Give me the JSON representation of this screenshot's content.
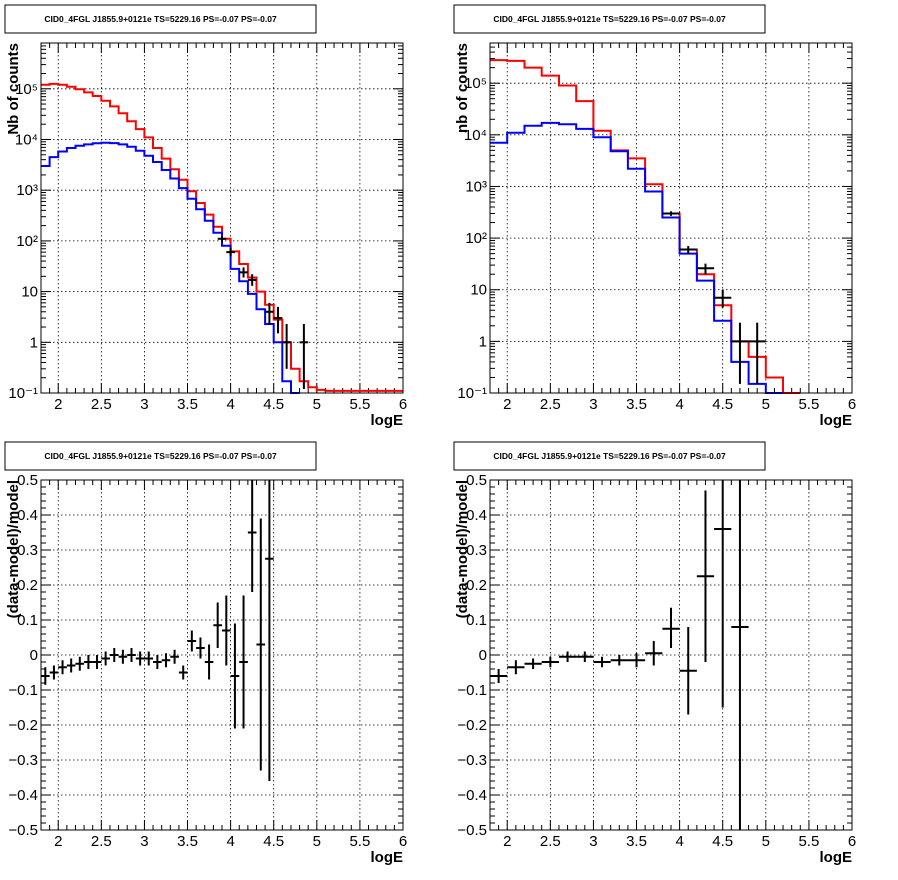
{
  "chart_data": [
    {
      "type": "line",
      "title": "CID0_4FGL J1855.9+0121e TS=5229.16 PS=-0.07 PS=-0.07",
      "xlabel": "logE",
      "ylabel": "Nb of counts",
      "log_y": true,
      "xlim": [
        1.8,
        6
      ],
      "ylim": [
        0.1,
        800000
      ],
      "x_ticks": [
        "2",
        "2.5",
        "3",
        "3.5",
        "4",
        "4.5",
        "5",
        "5.5",
        "6"
      ],
      "y_ticks": [
        "10⁻¹",
        "1",
        "10",
        "10²",
        "10³",
        "10⁴",
        "10⁵"
      ],
      "grid": true,
      "series": [
        {
          "color": "#ff0000",
          "bin_width": 0.1,
          "bins": [
            {
              "x0": 1.8,
              "y": 120000
            },
            {
              "x0": 1.9,
              "y": 125000
            },
            {
              "x0": 2.0,
              "y": 120000
            },
            {
              "x0": 2.1,
              "y": 110000
            },
            {
              "x0": 2.2,
              "y": 98000
            },
            {
              "x0": 2.3,
              "y": 85000
            },
            {
              "x0": 2.4,
              "y": 72000
            },
            {
              "x0": 2.5,
              "y": 58000
            },
            {
              "x0": 2.6,
              "y": 45000
            },
            {
              "x0": 2.7,
              "y": 33000
            },
            {
              "x0": 2.8,
              "y": 23000
            },
            {
              "x0": 2.9,
              "y": 16000
            },
            {
              "x0": 3.0,
              "y": 11000
            },
            {
              "x0": 3.1,
              "y": 6800
            },
            {
              "x0": 3.2,
              "y": 4200
            },
            {
              "x0": 3.3,
              "y": 2600
            },
            {
              "x0": 3.4,
              "y": 1600
            },
            {
              "x0": 3.5,
              "y": 950
            },
            {
              "x0": 3.6,
              "y": 560
            },
            {
              "x0": 3.7,
              "y": 330
            },
            {
              "x0": 3.8,
              "y": 190
            },
            {
              "x0": 3.9,
              "y": 110
            },
            {
              "x0": 4.0,
              "y": 62
            },
            {
              "x0": 4.1,
              "y": 35
            },
            {
              "x0": 4.2,
              "y": 19
            },
            {
              "x0": 4.3,
              "y": 10
            },
            {
              "x0": 4.4,
              "y": 5.5
            },
            {
              "x0": 4.5,
              "y": 2.8
            },
            {
              "x0": 4.6,
              "y": 1.0
            },
            {
              "x0": 4.7,
              "y": 0.3
            },
            {
              "x0": 4.8,
              "y": 0.17
            },
            {
              "x0": 4.9,
              "y": 0.13
            },
            {
              "x0": 5.0,
              "y": 0.115
            },
            {
              "x0": 5.1,
              "y": 0.11
            },
            {
              "x0": 5.2,
              "y": 0.11
            },
            {
              "x0": 5.3,
              "y": 0.11
            },
            {
              "x0": 5.4,
              "y": 0.11
            },
            {
              "x0": 5.5,
              "y": 0.11
            },
            {
              "x0": 5.6,
              "y": 0.11
            },
            {
              "x0": 5.7,
              "y": 0.11
            },
            {
              "x0": 5.8,
              "y": 0.11
            },
            {
              "x0": 5.9,
              "y": 0.11
            }
          ]
        },
        {
          "color": "#0000ff",
          "bin_width": 0.1,
          "bins": [
            {
              "x0": 1.8,
              "y": 3000
            },
            {
              "x0": 1.9,
              "y": 4500
            },
            {
              "x0": 2.0,
              "y": 5800
            },
            {
              "x0": 2.1,
              "y": 6800
            },
            {
              "x0": 2.2,
              "y": 7500
            },
            {
              "x0": 2.3,
              "y": 8000
            },
            {
              "x0": 2.4,
              "y": 8400
            },
            {
              "x0": 2.5,
              "y": 8600
            },
            {
              "x0": 2.6,
              "y": 8500
            },
            {
              "x0": 2.7,
              "y": 8000
            },
            {
              "x0": 2.8,
              "y": 7200
            },
            {
              "x0": 2.9,
              "y": 6000
            },
            {
              "x0": 3.0,
              "y": 4800
            },
            {
              "x0": 3.1,
              "y": 3600
            },
            {
              "x0": 3.2,
              "y": 2500
            },
            {
              "x0": 3.3,
              "y": 1700
            },
            {
              "x0": 3.4,
              "y": 1100
            },
            {
              "x0": 3.5,
              "y": 680
            },
            {
              "x0": 3.6,
              "y": 420
            },
            {
              "x0": 3.7,
              "y": 250
            },
            {
              "x0": 3.8,
              "y": 145
            },
            {
              "x0": 3.9,
              "y": 80
            },
            {
              "x0": 4.0,
              "y": 28
            },
            {
              "x0": 4.1,
              "y": 16
            },
            {
              "x0": 4.2,
              "y": 9
            },
            {
              "x0": 4.3,
              "y": 4.5
            },
            {
              "x0": 4.4,
              "y": 2.3
            },
            {
              "x0": 4.5,
              "y": 1.0
            },
            {
              "x0": 4.6,
              "y": 0.17
            },
            {
              "x0": 4.7,
              "y": 0.1
            }
          ]
        }
      ],
      "points": [
        {
          "x": 3.9,
          "xerr": 0.05,
          "y": 110,
          "ylo": 95,
          "yhi": 125
        },
        {
          "x": 4.0,
          "xerr": 0.05,
          "y": 60,
          "ylo": 50,
          "yhi": 72
        },
        {
          "x": 4.15,
          "xerr": 0.05,
          "y": 24,
          "ylo": 19,
          "yhi": 30
        },
        {
          "x": 4.25,
          "xerr": 0.05,
          "y": 17,
          "ylo": 13,
          "yhi": 22
        },
        {
          "x": 4.45,
          "xerr": 0.05,
          "y": 4,
          "ylo": 2.2,
          "yhi": 6
        },
        {
          "x": 4.55,
          "xerr": 0.05,
          "y": 3,
          "ylo": 1.5,
          "yhi": 5
        },
        {
          "x": 4.65,
          "xerr": 0.05,
          "y": 1,
          "ylo": 0.3,
          "yhi": 2.3
        },
        {
          "x": 4.85,
          "xerr": 0.05,
          "y": 1,
          "ylo": 0.12,
          "yhi": 2.3
        }
      ]
    },
    {
      "type": "line",
      "title": "CID0_4FGL J1855.9+0121e TS=5229.16 PS=-0.07 PS=-0.07",
      "xlabel": "logE",
      "ylabel": "nb of counts",
      "log_y": true,
      "xlim": [
        1.8,
        6
      ],
      "ylim": [
        0.1,
        600000
      ],
      "x_ticks": [
        "2",
        "2.5",
        "3",
        "3.5",
        "4",
        "4.5",
        "5",
        "5.5",
        "6"
      ],
      "y_ticks": [
        "10⁻¹",
        "1",
        "10",
        "10²",
        "10³",
        "10⁴",
        "10⁵"
      ],
      "grid": true,
      "series": [
        {
          "color": "#ff0000",
          "bin_width": 0.2,
          "bins": [
            {
              "x0": 1.8,
              "y": 280000
            },
            {
              "x0": 2.0,
              "y": 270000
            },
            {
              "x0": 2.2,
              "y": 200000
            },
            {
              "x0": 2.4,
              "y": 140000
            },
            {
              "x0": 2.6,
              "y": 90000
            },
            {
              "x0": 2.8,
              "y": 45000
            },
            {
              "x0": 3.0,
              "y": 12000
            },
            {
              "x0": 3.2,
              "y": 5000
            },
            {
              "x0": 3.4,
              "y": 3500
            },
            {
              "x0": 3.6,
              "y": 1100
            },
            {
              "x0": 3.8,
              "y": 300
            },
            {
              "x0": 4.0,
              "y": 60
            },
            {
              "x0": 4.2,
              "y": 20
            },
            {
              "x0": 4.4,
              "y": 5
            },
            {
              "x0": 4.6,
              "y": 1.0
            },
            {
              "x0": 4.8,
              "y": 0.5
            },
            {
              "x0": 5.0,
              "y": 0.2
            },
            {
              "x0": 5.2,
              "y": 0.1
            }
          ]
        },
        {
          "color": "#0000ff",
          "bin_width": 0.2,
          "bins": [
            {
              "x0": 1.8,
              "y": 7000
            },
            {
              "x0": 2.0,
              "y": 11000
            },
            {
              "x0": 2.2,
              "y": 15000
            },
            {
              "x0": 2.4,
              "y": 17000
            },
            {
              "x0": 2.6,
              "y": 16000
            },
            {
              "x0": 2.8,
              "y": 13000
            },
            {
              "x0": 3.0,
              "y": 9000
            },
            {
              "x0": 3.2,
              "y": 4800
            },
            {
              "x0": 3.4,
              "y": 2200
            },
            {
              "x0": 3.6,
              "y": 800
            },
            {
              "x0": 3.8,
              "y": 250
            },
            {
              "x0": 4.0,
              "y": 50
            },
            {
              "x0": 4.2,
              "y": 15
            },
            {
              "x0": 4.4,
              "y": 2.5
            },
            {
              "x0": 4.6,
              "y": 0.4
            },
            {
              "x0": 4.8,
              "y": 0.15
            },
            {
              "x0": 5.0,
              "y": 0.1
            }
          ]
        }
      ],
      "points": [
        {
          "x": 3.9,
          "xerr": 0.1,
          "y": 300,
          "ylo": 270,
          "yhi": 330
        },
        {
          "x": 4.1,
          "xerr": 0.1,
          "y": 60,
          "ylo": 50,
          "yhi": 70
        },
        {
          "x": 4.3,
          "xerr": 0.1,
          "y": 26,
          "ylo": 20,
          "yhi": 32
        },
        {
          "x": 4.5,
          "xerr": 0.1,
          "y": 7,
          "ylo": 4.5,
          "yhi": 10
        },
        {
          "x": 4.7,
          "xerr": 0.1,
          "y": 1,
          "ylo": 0.15,
          "yhi": 2.3
        },
        {
          "x": 4.9,
          "xerr": 0.1,
          "y": 1,
          "ylo": 0.15,
          "yhi": 2.3
        }
      ]
    },
    {
      "type": "scatter",
      "title": "CID0_4FGL J1855.9+0121e TS=5229.16 PS=-0.07 PS=-0.07",
      "xlabel": "logE",
      "ylabel": "(data-model)/model",
      "xlim": [
        1.8,
        6
      ],
      "ylim": [
        -0.5,
        0.5
      ],
      "x_ticks": [
        "2",
        "2.5",
        "3",
        "3.5",
        "4",
        "4.5",
        "5",
        "5.5",
        "6"
      ],
      "y_ticks": [
        "−0.5",
        "−0.4",
        "−0.3",
        "−0.2",
        "−0.1",
        "0",
        "0.1",
        "0.2",
        "0.3",
        "0.4",
        "0.5"
      ],
      "grid": true,
      "points": [
        {
          "x": 1.85,
          "xerr": 0.05,
          "y": -0.06,
          "ylo": -0.085,
          "yhi": -0.035
        },
        {
          "x": 1.95,
          "xerr": 0.05,
          "y": -0.05,
          "ylo": -0.07,
          "yhi": -0.03
        },
        {
          "x": 2.05,
          "xerr": 0.05,
          "y": -0.035,
          "ylo": -0.055,
          "yhi": -0.015
        },
        {
          "x": 2.15,
          "xerr": 0.05,
          "y": -0.03,
          "ylo": -0.05,
          "yhi": -0.01
        },
        {
          "x": 2.25,
          "xerr": 0.05,
          "y": -0.025,
          "ylo": -0.045,
          "yhi": -0.005
        },
        {
          "x": 2.35,
          "xerr": 0.05,
          "y": -0.02,
          "ylo": -0.04,
          "yhi": 0.0
        },
        {
          "x": 2.45,
          "xerr": 0.05,
          "y": -0.02,
          "ylo": -0.04,
          "yhi": 0.0
        },
        {
          "x": 2.55,
          "xerr": 0.05,
          "y": -0.01,
          "ylo": -0.03,
          "yhi": 0.01
        },
        {
          "x": 2.65,
          "xerr": 0.05,
          "y": 0.0,
          "ylo": -0.02,
          "yhi": 0.02
        },
        {
          "x": 2.75,
          "xerr": 0.05,
          "y": -0.005,
          "ylo": -0.025,
          "yhi": 0.015
        },
        {
          "x": 2.85,
          "xerr": 0.05,
          "y": 0.0,
          "ylo": -0.02,
          "yhi": 0.02
        },
        {
          "x": 2.95,
          "xerr": 0.05,
          "y": -0.01,
          "ylo": -0.03,
          "yhi": 0.01
        },
        {
          "x": 3.05,
          "xerr": 0.05,
          "y": -0.01,
          "ylo": -0.03,
          "yhi": 0.01
        },
        {
          "x": 3.15,
          "xerr": 0.05,
          "y": -0.02,
          "ylo": -0.04,
          "yhi": 0.0
        },
        {
          "x": 3.25,
          "xerr": 0.05,
          "y": -0.015,
          "ylo": -0.035,
          "yhi": 0.005
        },
        {
          "x": 3.35,
          "xerr": 0.05,
          "y": -0.005,
          "ylo": -0.025,
          "yhi": 0.015
        },
        {
          "x": 3.45,
          "xerr": 0.05,
          "y": -0.05,
          "ylo": -0.07,
          "yhi": -0.03
        },
        {
          "x": 3.55,
          "xerr": 0.05,
          "y": 0.04,
          "ylo": 0.01,
          "yhi": 0.07
        },
        {
          "x": 3.65,
          "xerr": 0.05,
          "y": 0.02,
          "ylo": -0.01,
          "yhi": 0.05
        },
        {
          "x": 3.75,
          "xerr": 0.05,
          "y": -0.02,
          "ylo": -0.07,
          "yhi": 0.03
        },
        {
          "x": 3.85,
          "xerr": 0.05,
          "y": 0.085,
          "ylo": 0.02,
          "yhi": 0.15
        },
        {
          "x": 3.95,
          "xerr": 0.05,
          "y": 0.07,
          "ylo": -0.03,
          "yhi": 0.17
        },
        {
          "x": 4.05,
          "xerr": 0.05,
          "y": -0.06,
          "ylo": -0.21,
          "yhi": 0.09
        },
        {
          "x": 4.15,
          "xerr": 0.05,
          "y": -0.02,
          "ylo": -0.21,
          "yhi": 0.17
        },
        {
          "x": 4.25,
          "xerr": 0.05,
          "y": 0.35,
          "ylo": 0.18,
          "yhi": 0.5
        },
        {
          "x": 4.35,
          "xerr": 0.05,
          "y": 0.03,
          "ylo": -0.33,
          "yhi": 0.39
        },
        {
          "x": 4.45,
          "xerr": 0.05,
          "y": 0.275,
          "ylo": -0.36,
          "yhi": 0.5
        }
      ]
    },
    {
      "type": "scatter",
      "title": "CID0_4FGL J1855.9+0121e TS=5229.16 PS=-0.07 PS=-0.07",
      "xlabel": "logE",
      "ylabel": "(data-model)/model",
      "xlim": [
        1.8,
        6
      ],
      "ylim": [
        -0.5,
        0.5
      ],
      "x_ticks": [
        "2",
        "2.5",
        "3",
        "3.5",
        "4",
        "4.5",
        "5",
        "5.5",
        "6"
      ],
      "y_ticks": [
        "−0.5",
        "−0.4",
        "−0.3",
        "−0.2",
        "−0.1",
        "0",
        "0.1",
        "0.2",
        "0.3",
        "0.4",
        "0.5"
      ],
      "grid": true,
      "points": [
        {
          "x": 1.9,
          "xerr": 0.1,
          "y": -0.06,
          "ylo": -0.08,
          "yhi": -0.04
        },
        {
          "x": 2.1,
          "xerr": 0.1,
          "y": -0.035,
          "ylo": -0.055,
          "yhi": -0.015
        },
        {
          "x": 2.3,
          "xerr": 0.1,
          "y": -0.025,
          "ylo": -0.04,
          "yhi": -0.01
        },
        {
          "x": 2.5,
          "xerr": 0.1,
          "y": -0.02,
          "ylo": -0.035,
          "yhi": -0.005
        },
        {
          "x": 2.7,
          "xerr": 0.1,
          "y": -0.005,
          "ylo": -0.02,
          "yhi": 0.01
        },
        {
          "x": 2.9,
          "xerr": 0.1,
          "y": -0.005,
          "ylo": -0.02,
          "yhi": 0.01
        },
        {
          "x": 3.1,
          "xerr": 0.1,
          "y": -0.02,
          "ylo": -0.035,
          "yhi": -0.005
        },
        {
          "x": 3.3,
          "xerr": 0.1,
          "y": -0.015,
          "ylo": -0.03,
          "yhi": 0.0
        },
        {
          "x": 3.5,
          "xerr": 0.1,
          "y": -0.015,
          "ylo": -0.035,
          "yhi": 0.005
        },
        {
          "x": 3.7,
          "xerr": 0.1,
          "y": 0.005,
          "ylo": -0.03,
          "yhi": 0.04
        },
        {
          "x": 3.9,
          "xerr": 0.1,
          "y": 0.075,
          "ylo": 0.02,
          "yhi": 0.135
        },
        {
          "x": 4.1,
          "xerr": 0.1,
          "y": -0.045,
          "ylo": -0.17,
          "yhi": 0.08
        },
        {
          "x": 4.3,
          "xerr": 0.1,
          "y": 0.225,
          "ylo": -0.02,
          "yhi": 0.47
        },
        {
          "x": 4.5,
          "xerr": 0.1,
          "y": 0.36,
          "ylo": -0.15,
          "yhi": 0.5
        },
        {
          "x": 4.7,
          "xerr": 0.1,
          "y": 0.08,
          "ylo": -0.5,
          "yhi": 0.5
        }
      ]
    }
  ]
}
